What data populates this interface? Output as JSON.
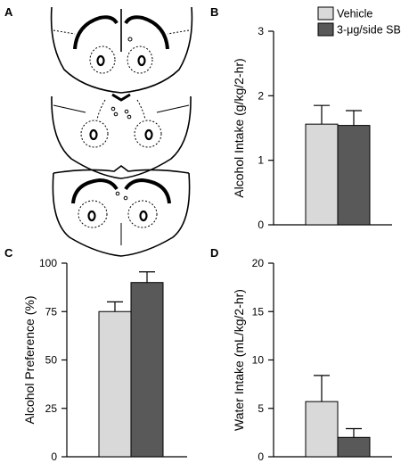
{
  "panel_letters": {
    "a": "A",
    "b": "B",
    "c": "C",
    "d": "D"
  },
  "legend": {
    "vehicle": "Vehicle",
    "drug": "3-μg/side SB"
  },
  "colors": {
    "vehicle": "#d9d9d9",
    "drug": "#595959",
    "stroke": "#000000"
  },
  "chart_data": [
    {
      "panel": "B",
      "type": "bar",
      "ylabel": "Alcohol Intake (g/kg/2-hr)",
      "ylim": [
        0,
        3
      ],
      "yticks": [
        "0",
        "1",
        "2",
        "3"
      ],
      "series": [
        {
          "name": "Vehicle",
          "values": [
            1.56
          ],
          "error": [
            0.29
          ]
        },
        {
          "name": "3-μg/side SB",
          "values": [
            1.54
          ],
          "error": [
            0.23
          ]
        }
      ]
    },
    {
      "panel": "C",
      "type": "bar",
      "ylabel": "Alcohol Preference (%)",
      "ylim": [
        0,
        100
      ],
      "yticks": [
        "0",
        "25",
        "50",
        "75",
        "100"
      ],
      "series": [
        {
          "name": "Vehicle",
          "values": [
            75
          ],
          "error": [
            5
          ]
        },
        {
          "name": "3-μg/side SB",
          "values": [
            90
          ],
          "error": [
            5.5
          ]
        }
      ]
    },
    {
      "panel": "D",
      "type": "bar",
      "ylabel": "Water Intake (mL/kg/2-hr)",
      "ylim": [
        0,
        20
      ],
      "yticks": [
        "0",
        "5",
        "10",
        "15",
        "20"
      ],
      "series": [
        {
          "name": "Vehicle",
          "values": [
            5.7
          ],
          "error": [
            2.7
          ]
        },
        {
          "name": "3-μg/side SB",
          "values": [
            2.0
          ],
          "error": [
            0.9
          ]
        }
      ]
    }
  ]
}
